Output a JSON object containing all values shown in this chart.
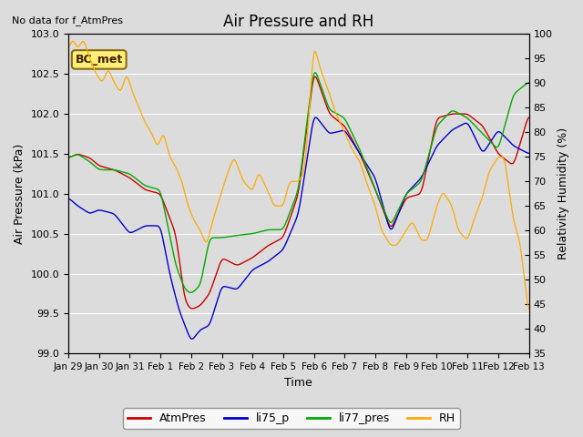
{
  "title": "Air Pressure and RH",
  "subtitle": "No data for f_AtmPres",
  "xlabel": "Time",
  "ylabel_left": "Air Pressure (kPa)",
  "ylabel_right": "Relativity Humidity (%)",
  "annotation": "BC_met",
  "ylim_left": [
    99.0,
    103.0
  ],
  "ylim_right": [
    35,
    100
  ],
  "yticks_left": [
    99.0,
    99.5,
    100.0,
    100.5,
    101.0,
    101.5,
    102.0,
    102.5,
    103.0
  ],
  "yticks_right": [
    35,
    40,
    45,
    50,
    55,
    60,
    65,
    70,
    75,
    80,
    85,
    90,
    95,
    100
  ],
  "xtick_labels": [
    "Jan 29",
    "Jan 30",
    "Jan 31",
    "Feb 1",
    "Feb 2",
    "Feb 3",
    "Feb 4",
    "Feb 5",
    "Feb 6",
    "Feb 7",
    "Feb 8",
    "Feb 9",
    "Feb 10",
    "Feb 11",
    "Feb 12",
    "Feb 13"
  ],
  "background_color": "#dcdcdc",
  "colors": {
    "AtmPres": "#cc0000",
    "li75_p": "#0000cc",
    "li77_pres": "#00aa00",
    "RH": "#ffaa00"
  },
  "legend_labels": [
    "AtmPres",
    "li75_p",
    "li77_pres",
    "RH"
  ]
}
